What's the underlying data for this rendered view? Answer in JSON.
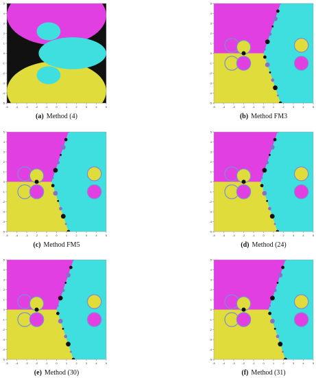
{
  "xticks": [
    -5,
    -4,
    -3,
    -2,
    -1,
    0,
    1,
    2,
    3,
    4,
    5
  ],
  "yticks": [
    -5,
    -4,
    -3,
    -2,
    -1,
    0,
    1,
    2,
    3,
    4,
    5
  ],
  "panels": [
    {
      "label": "(a)",
      "caption": "Method (4)"
    },
    {
      "label": "(b)",
      "caption": "Method FM3"
    },
    {
      "label": "(c)",
      "caption": "Method FM5"
    },
    {
      "label": "(d)",
      "caption": "Method (24)"
    },
    {
      "label": "(e)",
      "caption": "Method (30)"
    },
    {
      "label": "(f)",
      "caption": "Method (31)"
    }
  ]
}
